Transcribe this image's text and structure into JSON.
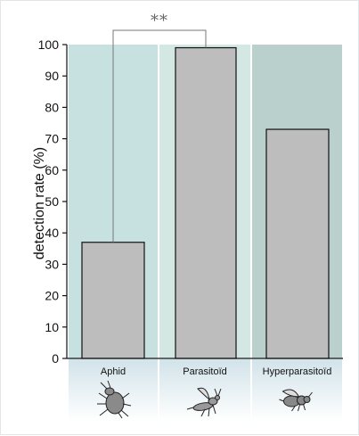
{
  "chart_data": {
    "type": "bar",
    "categories": [
      "Aphid",
      "Parasitoïd",
      "Hyperparasitoïd"
    ],
    "values": [
      37,
      99,
      73
    ],
    "ylabel": "detection rate (%)",
    "ylim": [
      0,
      100
    ],
    "yticks": [
      0,
      10,
      20,
      30,
      40,
      50,
      60,
      70,
      80,
      90,
      100
    ],
    "grid": false,
    "annotations": [
      {
        "text": "**",
        "between": [
          "Aphid",
          "Parasitoïd"
        ]
      }
    ],
    "category_icons": [
      "aphid-icon",
      "parasitoid-wasp-icon",
      "hyperparasitoid-wasp-icon"
    ],
    "colors": {
      "bar_fill": "#bdbdbd",
      "bar_stroke": "#111111",
      "band_aphid": "#c7e0e0",
      "band_parasitoid": "#d3e8e2",
      "band_hyperparasitoid": "#b9d0cc",
      "icon_band": "#dce9ef"
    }
  }
}
